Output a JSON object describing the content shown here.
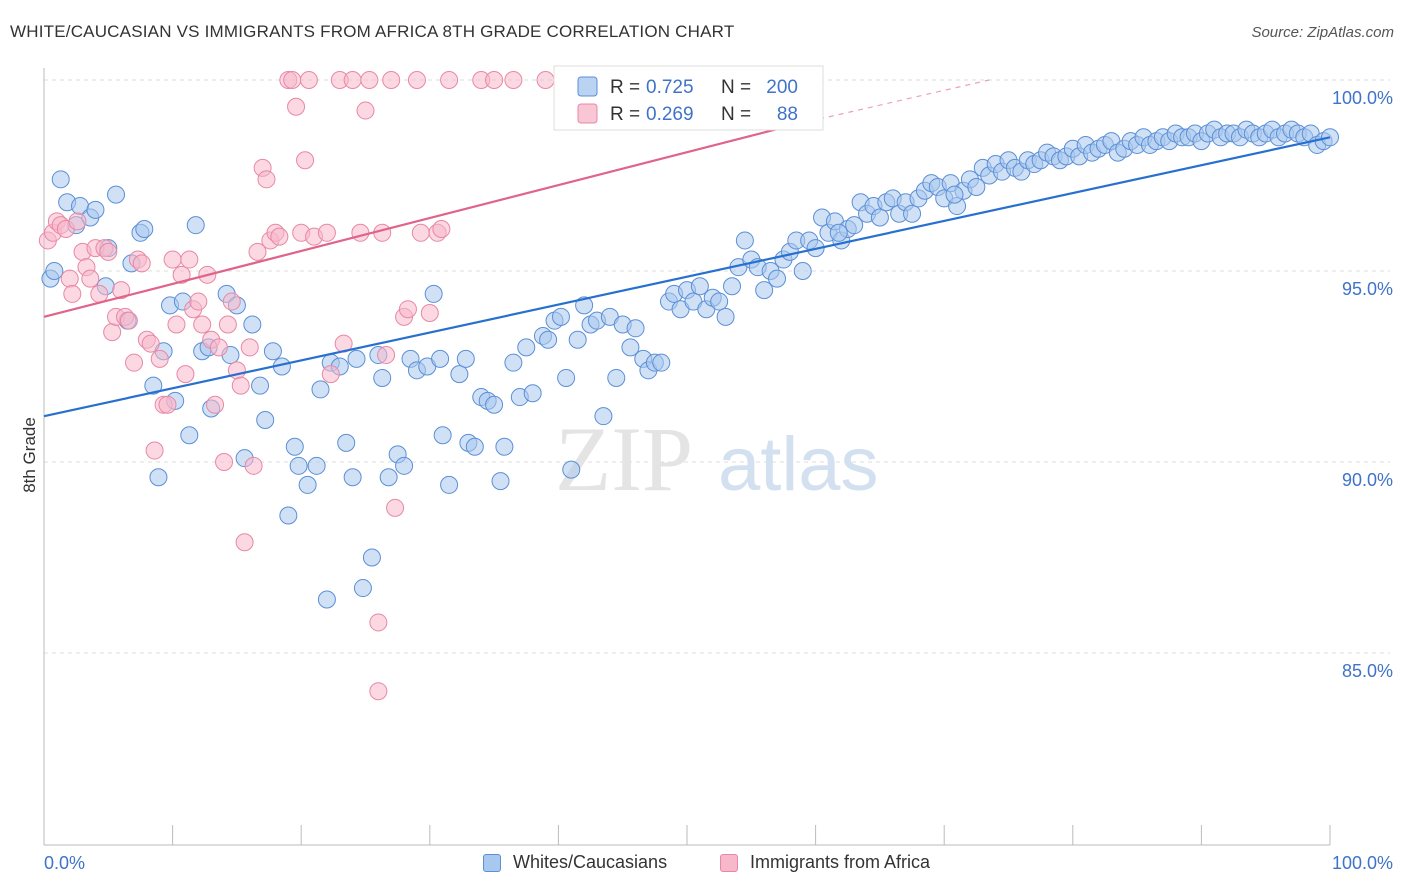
{
  "title": "WHITE/CAUCASIAN VS IMMIGRANTS FROM AFRICA 8TH GRADE CORRELATION CHART",
  "source": "Source: ZipAtlas.com",
  "watermark": {
    "zip": "ZIP",
    "atlas": "atlas"
  },
  "chart_data": {
    "type": "scatter",
    "title": "WHITE/CAUCASIAN VS IMMIGRANTS FROM AFRICA 8TH GRADE CORRELATION CHART",
    "xlabel": "",
    "ylabel": "8th Grade",
    "xlim": [
      0,
      100
    ],
    "ylim": [
      80.5,
      100.9
    ],
    "x_tick_labels": [
      "0.0%",
      "100.0%"
    ],
    "y_ticks": [
      {
        "value": 100,
        "label": "100.0%"
      },
      {
        "value": 95,
        "label": "95.0%"
      },
      {
        "value": 90,
        "label": "90.0%"
      },
      {
        "value": 85,
        "label": "85.0%"
      }
    ],
    "grid": "horizontal dashed",
    "legend_position": "top-center",
    "stats_legend": [
      {
        "r_label": "R =",
        "r_value": "0.725",
        "n_label": "N =",
        "n_value": "200",
        "color": "#a9c8ef"
      },
      {
        "r_label": "R =",
        "r_value": "0.269",
        "n_label": "N =",
        "n_value": "88",
        "color": "#f7b8cb"
      }
    ],
    "series": [
      {
        "name": "Whites/Caucasians",
        "color": "#a9c8ef",
        "edge": "#5b8fd6",
        "line_color": "#2870d0",
        "trend": {
          "x": [
            0,
            100
          ],
          "y": [
            91.2,
            98.5
          ]
        },
        "points": [
          [
            0.5,
            94.8
          ],
          [
            0.8,
            95.0
          ],
          [
            1.3,
            97.4
          ],
          [
            1.8,
            96.8
          ],
          [
            2.5,
            96.2
          ],
          [
            2.8,
            96.7
          ],
          [
            3.6,
            96.4
          ],
          [
            4.0,
            96.6
          ],
          [
            4.8,
            94.6
          ],
          [
            5.0,
            95.6
          ],
          [
            5.6,
            97.0
          ],
          [
            6.5,
            93.7
          ],
          [
            6.8,
            95.2
          ],
          [
            7.5,
            96.0
          ],
          [
            7.8,
            96.1
          ],
          [
            8.5,
            92.0
          ],
          [
            8.9,
            89.6
          ],
          [
            9.3,
            92.9
          ],
          [
            9.8,
            94.1
          ],
          [
            10.2,
            91.6
          ],
          [
            10.8,
            94.2
          ],
          [
            11.3,
            90.7
          ],
          [
            11.8,
            96.2
          ],
          [
            12.3,
            92.9
          ],
          [
            12.8,
            93.0
          ],
          [
            13.0,
            91.4
          ],
          [
            14.2,
            94.4
          ],
          [
            14.5,
            92.8
          ],
          [
            15.0,
            94.1
          ],
          [
            15.6,
            90.1
          ],
          [
            16.2,
            93.6
          ],
          [
            16.8,
            92.0
          ],
          [
            17.2,
            91.1
          ],
          [
            17.8,
            92.9
          ],
          [
            18.5,
            92.5
          ],
          [
            19.0,
            88.6
          ],
          [
            19.5,
            90.4
          ],
          [
            19.8,
            89.9
          ],
          [
            20.5,
            89.4
          ],
          [
            21.2,
            89.9
          ],
          [
            21.5,
            91.9
          ],
          [
            22.0,
            86.4
          ],
          [
            22.3,
            92.6
          ],
          [
            23.0,
            92.5
          ],
          [
            23.5,
            90.5
          ],
          [
            24.0,
            89.6
          ],
          [
            24.3,
            92.7
          ],
          [
            24.8,
            86.7
          ],
          [
            25.5,
            87.5
          ],
          [
            26.0,
            92.8
          ],
          [
            26.3,
            92.2
          ],
          [
            26.8,
            89.6
          ],
          [
            27.5,
            90.2
          ],
          [
            28.0,
            89.9
          ],
          [
            28.5,
            92.7
          ],
          [
            29.0,
            92.4
          ],
          [
            29.8,
            92.5
          ],
          [
            30.3,
            94.4
          ],
          [
            30.8,
            92.7
          ],
          [
            31.0,
            90.7
          ],
          [
            31.5,
            89.4
          ],
          [
            32.3,
            92.3
          ],
          [
            32.8,
            92.7
          ],
          [
            33.0,
            90.5
          ],
          [
            33.5,
            90.4
          ],
          [
            34.0,
            91.7
          ],
          [
            34.5,
            91.6
          ],
          [
            35.0,
            91.5
          ],
          [
            35.5,
            89.5
          ],
          [
            35.8,
            90.4
          ],
          [
            36.5,
            92.6
          ],
          [
            37.0,
            91.7
          ],
          [
            37.5,
            93.0
          ],
          [
            38.0,
            91.8
          ],
          [
            38.8,
            93.3
          ],
          [
            39.2,
            93.2
          ],
          [
            39.7,
            93.7
          ],
          [
            40.2,
            93.8
          ],
          [
            40.6,
            92.2
          ],
          [
            41.0,
            89.8
          ],
          [
            41.5,
            93.2
          ],
          [
            42.0,
            94.1
          ],
          [
            42.5,
            93.6
          ],
          [
            43.0,
            93.7
          ],
          [
            43.5,
            91.2
          ],
          [
            44.0,
            93.8
          ],
          [
            44.5,
            92.2
          ],
          [
            45.0,
            93.6
          ],
          [
            45.6,
            93.0
          ],
          [
            46.0,
            93.5
          ],
          [
            46.6,
            92.7
          ],
          [
            47.0,
            92.4
          ],
          [
            47.5,
            92.6
          ],
          [
            48.0,
            92.6
          ],
          [
            48.6,
            94.2
          ],
          [
            49.0,
            94.4
          ],
          [
            49.5,
            94.0
          ],
          [
            50.0,
            94.5
          ],
          [
            50.5,
            94.2
          ],
          [
            51.0,
            94.6
          ],
          [
            51.5,
            94.0
          ],
          [
            52.0,
            94.3
          ],
          [
            52.5,
            94.2
          ],
          [
            53.0,
            93.8
          ],
          [
            53.5,
            94.6
          ],
          [
            54.0,
            95.1
          ],
          [
            54.5,
            95.8
          ],
          [
            55.0,
            95.3
          ],
          [
            55.5,
            95.1
          ],
          [
            56.0,
            94.5
          ],
          [
            56.5,
            95.0
          ],
          [
            57.0,
            94.8
          ],
          [
            57.5,
            95.3
          ],
          [
            58.0,
            95.5
          ],
          [
            58.5,
            95.8
          ],
          [
            59.0,
            95.0
          ],
          [
            59.5,
            95.8
          ],
          [
            60.0,
            95.6
          ],
          [
            60.5,
            96.4
          ],
          [
            61.0,
            96.0
          ],
          [
            61.5,
            96.3
          ],
          [
            62.0,
            95.8
          ],
          [
            62.5,
            96.1
          ],
          [
            63.0,
            96.2
          ],
          [
            63.5,
            96.8
          ],
          [
            64.0,
            96.5
          ],
          [
            64.5,
            96.7
          ],
          [
            65.0,
            96.4
          ],
          [
            65.5,
            96.8
          ],
          [
            66.0,
            96.9
          ],
          [
            66.5,
            96.5
          ],
          [
            67.0,
            96.8
          ],
          [
            67.5,
            96.5
          ],
          [
            68.0,
            96.9
          ],
          [
            68.5,
            97.1
          ],
          [
            69.0,
            97.3
          ],
          [
            69.5,
            97.2
          ],
          [
            70.0,
            96.9
          ],
          [
            70.5,
            97.3
          ],
          [
            71.0,
            96.7
          ],
          [
            71.5,
            97.1
          ],
          [
            72.0,
            97.4
          ],
          [
            72.5,
            97.2
          ],
          [
            73.0,
            97.7
          ],
          [
            73.5,
            97.5
          ],
          [
            74.0,
            97.8
          ],
          [
            74.5,
            97.6
          ],
          [
            75.0,
            97.9
          ],
          [
            75.5,
            97.7
          ],
          [
            76.0,
            97.6
          ],
          [
            76.5,
            97.9
          ],
          [
            77.0,
            97.8
          ],
          [
            77.5,
            97.9
          ],
          [
            78.0,
            98.1
          ],
          [
            78.5,
            98.0
          ],
          [
            79.0,
            97.9
          ],
          [
            79.5,
            98.0
          ],
          [
            80.0,
            98.2
          ],
          [
            80.5,
            98.0
          ],
          [
            81.0,
            98.3
          ],
          [
            81.5,
            98.1
          ],
          [
            82.0,
            98.2
          ],
          [
            82.5,
            98.3
          ],
          [
            83.0,
            98.4
          ],
          [
            83.5,
            98.1
          ],
          [
            84.0,
            98.2
          ],
          [
            84.5,
            98.4
          ],
          [
            85.0,
            98.3
          ],
          [
            85.5,
            98.5
          ],
          [
            86.0,
            98.3
          ],
          [
            86.5,
            98.4
          ],
          [
            87.0,
            98.5
          ],
          [
            87.5,
            98.4
          ],
          [
            88.0,
            98.6
          ],
          [
            88.5,
            98.5
          ],
          [
            89.0,
            98.5
          ],
          [
            89.5,
            98.6
          ],
          [
            90.0,
            98.4
          ],
          [
            90.5,
            98.6
          ],
          [
            91.0,
            98.7
          ],
          [
            91.5,
            98.5
          ],
          [
            92.0,
            98.6
          ],
          [
            92.5,
            98.6
          ],
          [
            93.0,
            98.5
          ],
          [
            93.5,
            98.7
          ],
          [
            94.0,
            98.6
          ],
          [
            94.5,
            98.5
          ],
          [
            95.0,
            98.6
          ],
          [
            95.5,
            98.7
          ],
          [
            96.0,
            98.5
          ],
          [
            96.5,
            98.6
          ],
          [
            97.0,
            98.7
          ],
          [
            97.5,
            98.6
          ],
          [
            98.0,
            98.5
          ],
          [
            98.5,
            98.6
          ],
          [
            99.0,
            98.3
          ],
          [
            99.5,
            98.4
          ],
          [
            100.0,
            98.5
          ],
          [
            70.8,
            97.0
          ],
          [
            61.8,
            96.0
          ]
        ]
      },
      {
        "name": "Immigrants from Africa",
        "color": "#f7b8cb",
        "edge": "#e888a6",
        "line_color": "#e0638a",
        "trend": {
          "x": [
            0,
            58
          ],
          "y": [
            93.8,
            98.8
          ]
        },
        "trend_dashed": {
          "x": [
            58,
            73.5
          ],
          "y": [
            98.8,
            100.0
          ]
        },
        "points": [
          [
            0.3,
            95.8
          ],
          [
            0.7,
            96.0
          ],
          [
            1.0,
            96.3
          ],
          [
            1.3,
            96.2
          ],
          [
            1.7,
            96.1
          ],
          [
            2.0,
            94.8
          ],
          [
            2.2,
            94.4
          ],
          [
            2.6,
            96.3
          ],
          [
            3.0,
            95.5
          ],
          [
            3.3,
            95.1
          ],
          [
            3.6,
            94.8
          ],
          [
            4.0,
            95.6
          ],
          [
            4.3,
            94.4
          ],
          [
            4.7,
            95.6
          ],
          [
            5.0,
            95.5
          ],
          [
            5.3,
            93.4
          ],
          [
            5.6,
            93.8
          ],
          [
            6.0,
            94.5
          ],
          [
            6.3,
            93.8
          ],
          [
            6.6,
            93.7
          ],
          [
            7.0,
            92.6
          ],
          [
            7.3,
            95.3
          ],
          [
            7.6,
            95.2
          ],
          [
            8.0,
            93.2
          ],
          [
            8.3,
            93.1
          ],
          [
            8.6,
            90.3
          ],
          [
            9.0,
            92.7
          ],
          [
            9.3,
            91.5
          ],
          [
            9.6,
            91.5
          ],
          [
            10.0,
            95.3
          ],
          [
            10.3,
            93.6
          ],
          [
            10.7,
            94.9
          ],
          [
            11.0,
            92.3
          ],
          [
            11.3,
            95.3
          ],
          [
            11.6,
            94.0
          ],
          [
            12.0,
            94.2
          ],
          [
            12.3,
            93.6
          ],
          [
            12.7,
            94.9
          ],
          [
            13.0,
            93.2
          ],
          [
            13.3,
            91.5
          ],
          [
            13.6,
            93.0
          ],
          [
            14.0,
            90.0
          ],
          [
            14.3,
            93.6
          ],
          [
            14.6,
            94.2
          ],
          [
            15.0,
            92.4
          ],
          [
            15.3,
            92.0
          ],
          [
            15.6,
            87.9
          ],
          [
            16.0,
            93.0
          ],
          [
            16.3,
            89.9
          ],
          [
            16.6,
            95.5
          ],
          [
            17.0,
            97.7
          ],
          [
            17.3,
            97.4
          ],
          [
            17.6,
            95.8
          ],
          [
            18.0,
            96.0
          ],
          [
            18.3,
            95.9
          ],
          [
            19.0,
            100.0
          ],
          [
            19.3,
            100.0
          ],
          [
            19.6,
            99.3
          ],
          [
            20.0,
            96.0
          ],
          [
            20.3,
            97.9
          ],
          [
            20.6,
            100.0
          ],
          [
            21.0,
            95.9
          ],
          [
            22.0,
            96.0
          ],
          [
            22.3,
            92.3
          ],
          [
            23.0,
            100.0
          ],
          [
            23.3,
            93.1
          ],
          [
            24.0,
            100.0
          ],
          [
            24.6,
            96.0
          ],
          [
            25.0,
            99.2
          ],
          [
            25.3,
            100.0
          ],
          [
            26.0,
            85.8
          ],
          [
            26.3,
            96.0
          ],
          [
            26.6,
            92.8
          ],
          [
            27.0,
            100.0
          ],
          [
            27.3,
            88.8
          ],
          [
            28.0,
            93.8
          ],
          [
            28.3,
            94.0
          ],
          [
            29.0,
            100.0
          ],
          [
            29.3,
            96.0
          ],
          [
            30.0,
            93.9
          ],
          [
            30.6,
            96.0
          ],
          [
            30.9,
            96.1
          ],
          [
            31.5,
            100.0
          ],
          [
            34.0,
            100.0
          ],
          [
            35.0,
            100.0
          ],
          [
            36.5,
            100.0
          ],
          [
            39.0,
            100.0
          ],
          [
            26.0,
            84.0
          ]
        ]
      }
    ]
  },
  "legend": [
    {
      "label": "Whites/Caucasians",
      "color": "#a9c8ef",
      "edge": "#5b8fd6"
    },
    {
      "label": "Immigrants from Africa",
      "color": "#f7b8cb",
      "edge": "#e888a6"
    }
  ]
}
